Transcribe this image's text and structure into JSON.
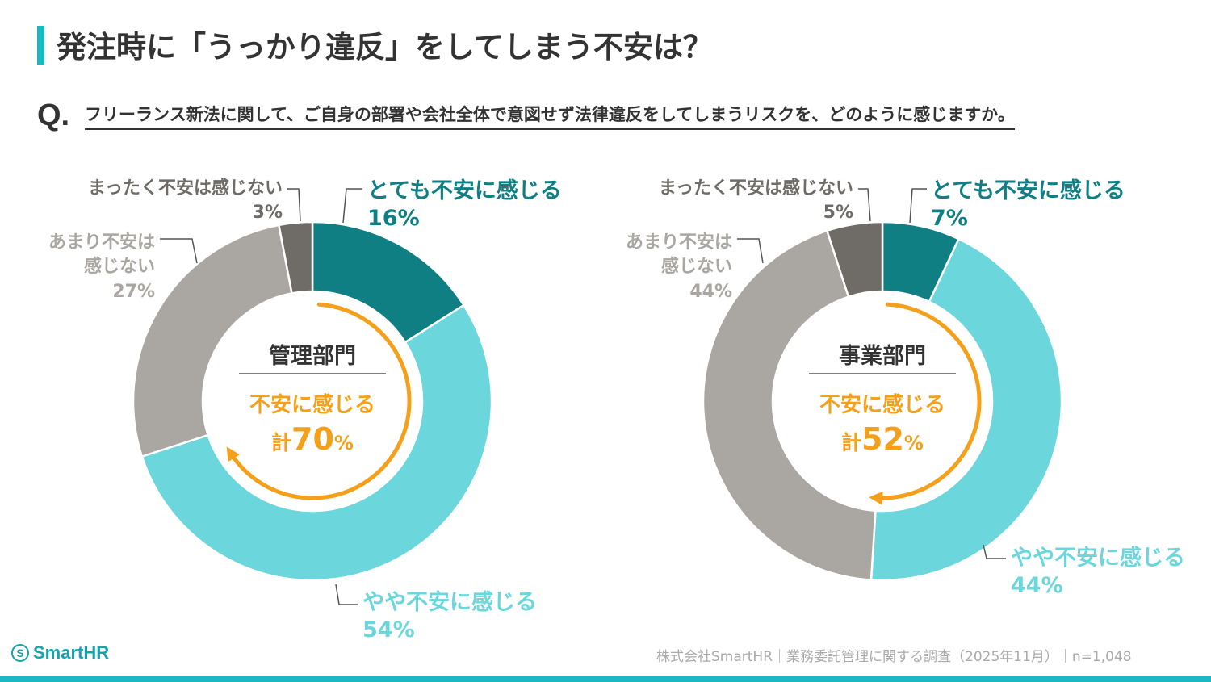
{
  "header": {
    "title": "発注時に「うっかり違反」をしてしまう不安は？",
    "q_mark": "Q.",
    "question": "フリーランス新法に関して、ご自身の部署や会社全体で意図せず法律違反をしてしまうリスクを、どのように感じますか。"
  },
  "colors": {
    "very_anxious": "#0f7f84",
    "somewhat_anxious": "#6bd6dc",
    "not_very": "#aaa6a1",
    "not_at_all": "#6f6b67",
    "accent_orange": "#f5a01a",
    "brand_teal": "#1cb8c2"
  },
  "chart_data": [
    {
      "type": "pie",
      "center_title": "管理部門",
      "total_label": "不安に感じる",
      "total_prefix": "計",
      "total_value": "70",
      "total_unit": "%",
      "series": [
        {
          "name": "とても不安に感じる",
          "value": 16,
          "label": "16%"
        },
        {
          "name": "やや不安に感じる",
          "value": 54,
          "label": "54%"
        },
        {
          "name": "あまり不安は感じない",
          "name_lines": [
            "あまり不安は",
            "感じない"
          ],
          "value": 27,
          "label": "27%"
        },
        {
          "name": "まったく不安は感じない",
          "value": 3,
          "label": "3%"
        }
      ]
    },
    {
      "type": "pie",
      "center_title": "事業部門",
      "total_label": "不安に感じる",
      "total_prefix": "計",
      "total_value": "52",
      "total_unit": "%",
      "series": [
        {
          "name": "とても不安に感じる",
          "value": 7,
          "label": "7%"
        },
        {
          "name": "やや不安に感じる",
          "value": 44,
          "label": "44%"
        },
        {
          "name": "あまり不安は感じない",
          "name_lines": [
            "あまり不安は",
            "感じない"
          ],
          "value": 44,
          "label": "44%"
        },
        {
          "name": "まったく不安は感じない",
          "value": 5,
          "label": "5%"
        }
      ]
    }
  ],
  "footer": {
    "logo_icon": "S",
    "logo_text": "SmartHR",
    "source": "株式会社SmartHR｜業務委託管理に関する調査（2025年11月）｜n=1,048"
  }
}
